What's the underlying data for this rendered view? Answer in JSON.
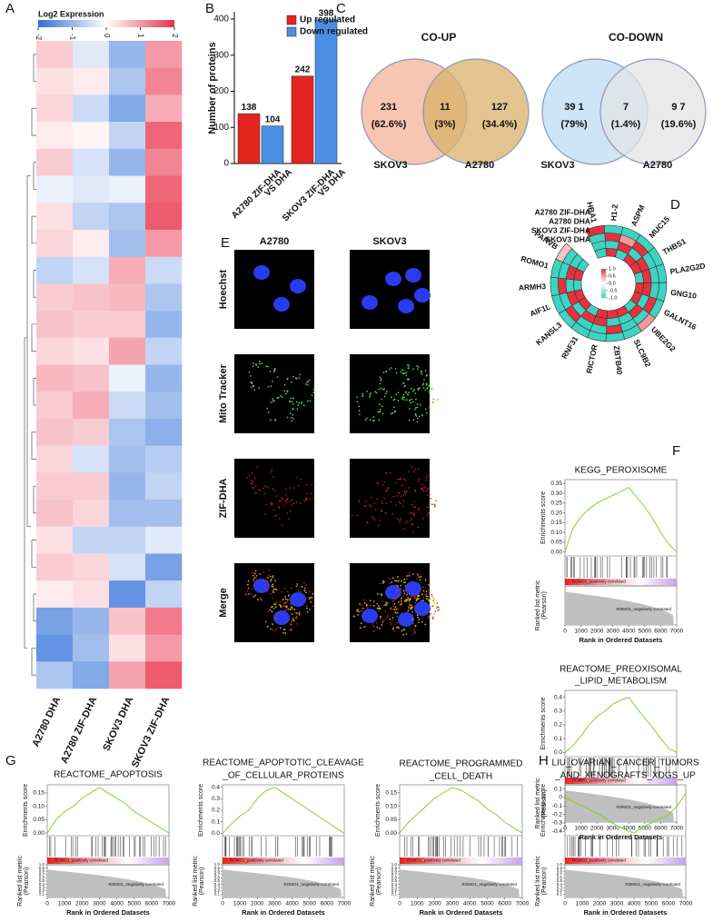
{
  "panel_labels": [
    "A",
    "B",
    "C",
    "D",
    "E",
    "F",
    "G",
    "H"
  ],
  "venn": [
    {
      "title": "CO-UP",
      "sets": [
        "SKOV3",
        "A2780"
      ],
      "regions": [
        [
          "231",
          "(62.6%)"
        ],
        [
          "11",
          "(3%)"
        ],
        [
          "127",
          "(34.4%)"
        ]
      ],
      "colors": [
        "#f7c5b0",
        "#d9b06a"
      ]
    },
    {
      "title": "CO-DOWN",
      "sets": [
        "SKOV3",
        "A2780"
      ],
      "regions": [
        [
          "39 1",
          "(79%)"
        ],
        [
          "7",
          "(1.4%)"
        ],
        [
          "9 7",
          "(19.6%)"
        ]
      ],
      "colors": [
        "#cde5f7",
        "#e3e3e3"
      ]
    }
  ],
  "microscopy": {
    "columns": [
      "A2780",
      "SKOV3"
    ],
    "rows": [
      "Hoechst",
      "Mito Tracker",
      "ZIF-DHA",
      "Merge"
    ]
  },
  "chart_data": [
    {
      "type": "heatmap",
      "title": "Log2 Expression",
      "columns": [
        "A2780 DHA",
        "A2780 ZIF-DHA",
        "SKOV3 DHA",
        "SKOV3 ZIF-DHA"
      ],
      "clim": [
        -2,
        2
      ],
      "cticks": [
        -2,
        -1,
        0,
        1,
        2
      ],
      "colorscale": [
        "#2f6fd8",
        "#ffffff",
        "#e8334a"
      ],
      "values": [
        [
          0.5,
          -0.3,
          -1,
          1
        ],
        [
          0.3,
          0.2,
          -0.8,
          1.2
        ],
        [
          0.4,
          -0.5,
          -1.2,
          0.8
        ],
        [
          0.2,
          0.1,
          -0.6,
          1.5
        ],
        [
          0.5,
          -0.4,
          -1,
          1.2
        ],
        [
          -0.2,
          -0.3,
          -0.2,
          1.5
        ],
        [
          0.3,
          -0.6,
          -0.8,
          1.6
        ],
        [
          0.4,
          0.2,
          -0.9,
          1
        ],
        [
          -0.6,
          -0.4,
          0.8,
          -0.5
        ],
        [
          0.5,
          0.6,
          0.7,
          -0.8
        ],
        [
          0.6,
          0.5,
          0.5,
          -1
        ],
        [
          0.4,
          0.3,
          0.9,
          -0.6
        ],
        [
          0.7,
          0.6,
          -0.2,
          -1
        ],
        [
          0.5,
          0.8,
          -0.5,
          -0.9
        ],
        [
          0.6,
          0.5,
          -0.8,
          -1.1
        ],
        [
          0.4,
          -0.4,
          -0.9,
          -0.7
        ],
        [
          0.5,
          0.5,
          -1,
          -0.6
        ],
        [
          0.6,
          0.4,
          -0.9,
          -0.9
        ],
        [
          0.3,
          -0.6,
          -0.6,
          -0.3
        ],
        [
          0.5,
          0.4,
          -0.4,
          -1.3
        ],
        [
          0.2,
          0.3,
          -1.5,
          -0.6
        ],
        [
          -1.3,
          -1,
          0.6,
          1.3
        ],
        [
          -1.5,
          -0.9,
          0.3,
          1
        ],
        [
          -0.8,
          -1.2,
          0.9,
          1.6
        ]
      ]
    },
    {
      "type": "bar",
      "ylabel": "Number of proteins",
      "categories": [
        [
          "A2780 ZIF-DHA",
          "VS DHA"
        ],
        [
          "SKOV3 ZIF-DHA",
          "VS DHA"
        ]
      ],
      "series": [
        {
          "name": "Up regulated",
          "color": "#e3241f",
          "values": [
            138,
            242
          ]
        },
        {
          "name": "Down regulated",
          "color": "#4a8fe3",
          "values": [
            104,
            398
          ]
        }
      ],
      "ylim": [
        0,
        420
      ],
      "yticks": [
        0,
        100,
        200,
        300,
        400
      ]
    },
    {
      "type": "heatmap",
      "layout": "circular",
      "rows": [
        "A2780 ZIF-DHA",
        "A2780 DHA",
        "SKOV3 ZIF-DHA",
        "SKOV3 DHA"
      ],
      "columns": [
        "HBA1",
        "H1-2",
        "ASPM",
        "MUC15",
        "THBS1",
        "PLA2G2D",
        "GNG10",
        "GALNT16",
        "UBE2G2",
        "SLC9B2",
        "ZBTB40",
        "RICTOR",
        "RNF31",
        "KANSL3",
        "AIF1L",
        "ARMH3",
        "ROMO1",
        "PARVB"
      ],
      "clim": [
        -1,
        1
      ],
      "cticks": [
        {
          "value": 1,
          "label": "1.0"
        },
        0.5,
        {
          "value": 0,
          "label": "0.0"
        },
        -0.5,
        {
          "value": -1,
          "label": "-1.0"
        }
      ],
      "colorscale": [
        "#3ed3c2",
        "#ffffff",
        "#e5323c"
      ],
      "values": [
        [
          1,
          -1,
          -1,
          -1,
          -1,
          -1,
          -1,
          -1,
          0.5,
          -1,
          -1,
          -1,
          -1,
          -1,
          -1,
          -1,
          -1,
          0.3
        ],
        [
          -1,
          1,
          0.5,
          1,
          -1,
          -1,
          -1,
          1,
          -1,
          -1,
          1,
          -1,
          -1,
          1,
          -1,
          1,
          -1,
          -1
        ],
        [
          -1,
          -1,
          1,
          -1,
          1,
          1,
          1,
          -1,
          1,
          -1,
          -1,
          1,
          1,
          -1,
          1,
          -1,
          1,
          -1
        ],
        [
          -1,
          1,
          -1,
          1,
          1,
          -1,
          1,
          1,
          -1,
          1,
          1,
          1,
          -1,
          1,
          1,
          -1,
          1,
          -1
        ]
      ]
    },
    {
      "type": "line",
      "title": [
        "KEGG_PEROXISOME"
      ],
      "ylabel": "Enrichments score",
      "ylabel2": [
        "Ranked list metric",
        "(Pearson)"
      ],
      "xlabel": "Rank in Ordered Datasets",
      "pos_label": "ROMO1_positively correlated",
      "neg_label": "ROMO1_negatively correlated",
      "color": "#7fd62a",
      "x": [
        0,
        500,
        1000,
        1500,
        2000,
        2500,
        3000,
        3500,
        4000,
        4500,
        5000,
        5500,
        6000,
        6500,
        7000
      ],
      "values": [
        0,
        0.12,
        0.18,
        0.22,
        0.25,
        0.27,
        0.29,
        0.31,
        0.33,
        0.28,
        0.23,
        0.17,
        0.1,
        0.04,
        0
      ],
      "xlim": [
        0,
        7000
      ],
      "xticks": [
        0,
        1000,
        2000,
        3000,
        4000,
        5000,
        6000,
        7000
      ],
      "ylim": [
        -0.02,
        0.37
      ],
      "yticks": [
        {
          "value": 0,
          "label": "0.00"
        },
        0.05,
        {
          "value": 0.1,
          "label": "0.10"
        },
        0.15,
        {
          "value": 0.2,
          "label": "0.20"
        },
        0.25,
        {
          "value": 0.3,
          "label": "0.30"
        },
        0.35
      ]
    },
    {
      "type": "line",
      "title": [
        "REACTOME_PREOXISOMAL",
        "_LIPID_METABOLISM"
      ],
      "ylabel": "Enrichments score",
      "ylabel2": [
        "Ranked list metric",
        "(Pearson)"
      ],
      "xlabel": "Rank in Ordered Datasets",
      "pos_label": "ROMO1_positively correlated",
      "neg_label": "ROMO1_negatively correlated",
      "color": "#7fd62a",
      "x": [
        0,
        500,
        1000,
        1500,
        2000,
        2500,
        3000,
        3500,
        4000,
        4500,
        5000,
        5500,
        6000,
        6500,
        7000
      ],
      "values": [
        0,
        0.05,
        0.12,
        0.2,
        0.26,
        0.3,
        0.35,
        0.38,
        0.4,
        0.32,
        0.25,
        0.18,
        0.1,
        0.03,
        0
      ],
      "xlim": [
        0,
        7000
      ],
      "xticks": [
        0,
        1000,
        2000,
        3000,
        4000,
        5000,
        6000,
        7000
      ],
      "ylim": [
        -0.03,
        0.45
      ],
      "yticks": [
        {
          "value": 0,
          "label": "0.0"
        },
        0.1,
        0.2,
        0.3,
        0.4
      ]
    },
    {
      "type": "line",
      "title": [
        "REACTOME_APOPTOSIS"
      ],
      "ylabel": "Enrichments score",
      "ylabel2": [
        "Ranked list metric",
        "(Pearson)"
      ],
      "xlabel": "Rank in Ordered Datasets",
      "pos_label": "ROMO1_positively correlated",
      "neg_label": "ROMO1_negatively correlated",
      "color": "#7fd62a",
      "x": [
        0,
        500,
        1000,
        1500,
        2000,
        2500,
        3000,
        3500,
        4000,
        4500,
        5000,
        5500,
        6000,
        6500,
        7000
      ],
      "values": [
        0,
        0.05,
        0.08,
        0.1,
        0.13,
        0.15,
        0.17,
        0.15,
        0.13,
        0.11,
        0.08,
        0.06,
        0.04,
        0.02,
        0
      ],
      "xlim": [
        0,
        7000
      ],
      "xticks": [
        0,
        1000,
        2000,
        3000,
        4000,
        5000,
        6000,
        7000
      ],
      "ylim": [
        -0.01,
        0.18
      ],
      "yticks": [
        {
          "value": 0,
          "label": "0.00"
        },
        0.05,
        {
          "value": 0.1,
          "label": "0.10"
        },
        0.15
      ],
      "rank_ticks": [
        {
          "value": 1,
          "label": "1.0"
        },
        0.9,
        0.8,
        0.7,
        0.6,
        0.5,
        0.4,
        0.3,
        0.2,
        0.1
      ]
    },
    {
      "type": "line",
      "title": [
        "REACTOME_APOPTOTIC_CLEAVAGE",
        "_OF_CELLULAR_PROTEINS"
      ],
      "ylabel": "Enrichments score",
      "ylabel2": [
        "Ranked list metric",
        "(Pearson)"
      ],
      "xlabel": "Rank in Ordered Datasets",
      "pos_label": "ROMO1_positively correlated",
      "neg_label": "ROMO1_negatively correlated",
      "color": "#7fd62a",
      "x": [
        0,
        500,
        1000,
        1500,
        2000,
        2500,
        3000,
        3500,
        4000,
        4500,
        5000,
        5500,
        6000,
        6500,
        7000
      ],
      "values": [
        0,
        0.08,
        0.15,
        0.2,
        0.3,
        0.37,
        0.4,
        0.35,
        0.3,
        0.25,
        0.2,
        0.15,
        0.1,
        0.05,
        0
      ],
      "xlim": [
        0,
        7000
      ],
      "xticks": [
        0,
        1000,
        2000,
        3000,
        4000,
        5000,
        6000,
        7000
      ],
      "ylim": [
        -0.02,
        0.42
      ],
      "yticks": [
        {
          "value": 0,
          "label": "0.0"
        },
        0.1,
        0.2,
        0.3,
        0.4
      ],
      "rank_ticks": [
        {
          "value": 1,
          "label": "1.0"
        },
        0.9,
        0.8,
        0.7,
        0.6,
        0.5,
        0.4,
        0.3,
        0.2,
        0.1
      ]
    },
    {
      "type": "line",
      "title": [
        "REACTOME_PROGRAMMED",
        "_CELL_DEATH"
      ],
      "ylabel": "Enrichments score",
      "ylabel2": [
        "Ranked list metric",
        "(Pearson)"
      ],
      "xlabel": "Rank in Ordered Datasets",
      "pos_label": "ROMO1_positively correlated",
      "neg_label": "ROMO1_negatively correlated",
      "color": "#7fd62a",
      "x": [
        0,
        500,
        1000,
        1500,
        2000,
        2500,
        3000,
        3500,
        4000,
        4500,
        5000,
        5500,
        6000,
        6500,
        7000
      ],
      "values": [
        0,
        0.04,
        0.07,
        0.1,
        0.13,
        0.15,
        0.17,
        0.16,
        0.14,
        0.12,
        0.09,
        0.07,
        0.04,
        0.02,
        0
      ],
      "xlim": [
        0,
        7000
      ],
      "xticks": [
        0,
        1000,
        2000,
        3000,
        4000,
        5000,
        6000,
        7000
      ],
      "ylim": [
        -0.01,
        0.18
      ],
      "yticks": [
        {
          "value": 0,
          "label": "0.00"
        },
        0.05,
        {
          "value": 0.1,
          "label": "0.10"
        },
        0.15
      ],
      "rank_ticks": [
        {
          "value": 1,
          "label": "1.0"
        },
        0.9,
        0.8,
        0.7,
        0.6,
        0.5,
        0.4,
        0.3,
        0.2,
        0.1
      ]
    },
    {
      "type": "line",
      "title": [
        "LIU_OVARIAN_CANCER_TUMORS",
        "_AND_XENOGRAFTS_XDGS_UP"
      ],
      "ylabel": "Enrichments score",
      "ylabel2": [
        "Ranked list metric",
        "(Pearson)"
      ],
      "xlabel": "Rank in Ordered Datasets",
      "pos_label": "ROMO1_positively correlated",
      "neg_label": "ROMO1_negatively correlated",
      "color": "#7fd62a",
      "x": [
        0,
        500,
        1000,
        1500,
        2000,
        2500,
        3000,
        3500,
        4000,
        4500,
        5000,
        5500,
        6000,
        6500,
        7000
      ],
      "values": [
        0,
        -0.05,
        -0.1,
        -0.15,
        -0.2,
        -0.27,
        -0.33,
        -0.38,
        -0.42,
        -0.35,
        -0.3,
        -0.25,
        -0.2,
        -0.1,
        0.05
      ],
      "xlim": [
        0,
        7000
      ],
      "xticks": [
        0,
        1000,
        2000,
        3000,
        4000,
        5000,
        6000,
        7000
      ],
      "ylim": [
        -0.45,
        0.15
      ],
      "yticks": [
        0.1,
        0,
        -0.1,
        -0.2,
        -0.3,
        -0.4
      ],
      "rank_ticks": [
        {
          "value": 1,
          "label": "1.0"
        },
        0.9,
        0.8,
        0.7,
        0.6,
        0.5,
        0.4,
        0.3,
        0.2,
        0.1
      ]
    }
  ]
}
